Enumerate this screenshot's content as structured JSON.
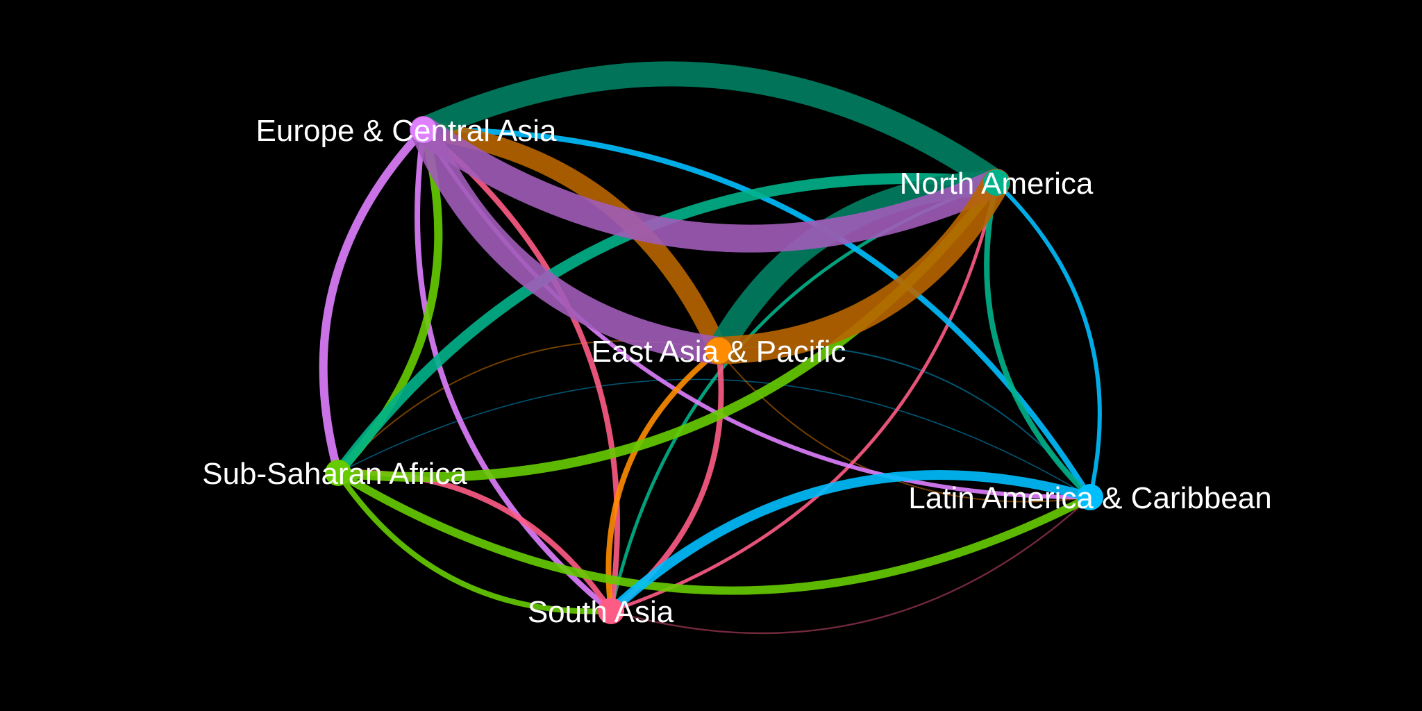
{
  "colors": {
    "background": "#000000",
    "label": "#ffffff"
  },
  "regions": [
    {
      "id": "eca",
      "name": "Europe & Central Asia",
      "color": "#df80ff"
    },
    {
      "id": "na",
      "name": "North America",
      "color": "#00b28a"
    },
    {
      "id": "eap",
      "name": "East Asia & Pacific",
      "color": "#ff8c00"
    },
    {
      "id": "ssa",
      "name": "Sub-Saharan Africa",
      "color": "#66cc00"
    },
    {
      "id": "lac",
      "name": "Latin America & Caribbean",
      "color": "#00bfff"
    },
    {
      "id": "sa",
      "name": "South Asia",
      "color": "#ff5c85"
    }
  ],
  "flows": [
    {
      "source": "eca",
      "target": "na",
      "weight": 10
    },
    {
      "source": "eca",
      "target": "eap",
      "weight": 10
    },
    {
      "source": "na",
      "target": "eca",
      "weight": 9
    },
    {
      "source": "na",
      "target": "eap",
      "weight": 9
    },
    {
      "source": "eap",
      "target": "na",
      "weight": 10
    },
    {
      "source": "eap",
      "target": "eca",
      "weight": 7
    },
    {
      "source": "ssa",
      "target": "na",
      "weight": 3.5
    },
    {
      "source": "ssa",
      "target": "eca",
      "weight": 3
    },
    {
      "source": "ssa",
      "target": "lac",
      "weight": 3
    },
    {
      "source": "eca",
      "target": "ssa",
      "weight": 3
    },
    {
      "source": "na",
      "target": "ssa",
      "weight": 4
    },
    {
      "source": "lac",
      "target": "sa",
      "weight": 3.5
    },
    {
      "source": "lac",
      "target": "eca",
      "weight": 2
    },
    {
      "source": "na",
      "target": "lac",
      "weight": 2
    },
    {
      "source": "eca",
      "target": "lac",
      "weight": 1.5
    },
    {
      "source": "sa",
      "target": "eca",
      "weight": 2
    },
    {
      "source": "eca",
      "target": "sa",
      "weight": 2
    },
    {
      "source": "sa",
      "target": "ssa",
      "weight": 2
    },
    {
      "source": "ssa",
      "target": "sa",
      "weight": 2
    },
    {
      "source": "eap",
      "target": "sa",
      "weight": 2
    },
    {
      "source": "sa",
      "target": "eap",
      "weight": 2
    },
    {
      "source": "lac",
      "target": "na",
      "weight": 1.5
    },
    {
      "source": "na",
      "target": "sa",
      "weight": 1.2
    },
    {
      "source": "sa",
      "target": "na",
      "weight": 1.2
    },
    {
      "source": "eap",
      "target": "ssa",
      "weight": 0.5
    },
    {
      "source": "eap",
      "target": "lac",
      "weight": 0.5
    },
    {
      "source": "lac",
      "target": "eap",
      "weight": 0.5
    },
    {
      "source": "lac",
      "target": "ssa",
      "weight": 0.4
    },
    {
      "source": "sa",
      "target": "lac",
      "weight": 0.6
    }
  ]
}
